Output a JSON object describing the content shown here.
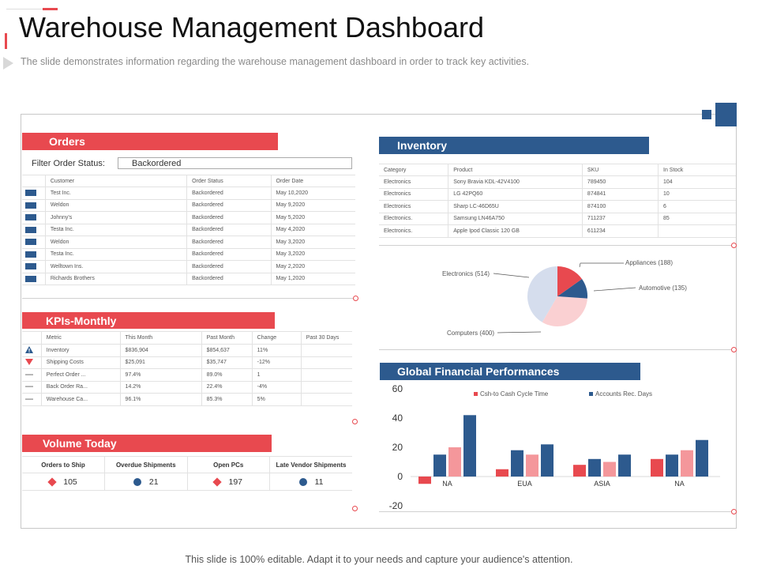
{
  "title": "Warehouse Management Dashboard",
  "subtitle": "The slide demonstrates information  regarding  the warehouse  management  dashboard  in order  to track key activities.",
  "footer": "This slide is 100% editable. Adapt it to your needs and capture your audience's attention.",
  "colors": {
    "red": "#e8494f",
    "blue": "#2d5a8e",
    "pink": "#f4979b",
    "light_blue": "#d5dded",
    "light_pink": "#fad0d2"
  },
  "orders": {
    "header": "Orders",
    "filter_label": "Filter Order Status:",
    "filter_value": "Backordered",
    "columns": [
      "",
      "Customer",
      "Order Status",
      "Order Date"
    ],
    "rows": [
      {
        "customer": "Test Inc.",
        "status": "Backordered",
        "date": "May 10,2020"
      },
      {
        "customer": "Weldon",
        "status": "Backordered",
        "date": "May 9,2020"
      },
      {
        "customer": "Johnny's",
        "status": "Backordered",
        "date": "May 5,2020"
      },
      {
        "customer": "Testa Inc.",
        "status": "Backordered",
        "date": "May 4,2020"
      },
      {
        "customer": "Weldon",
        "status": "Backordered",
        "date": "May 3,2020"
      },
      {
        "customer": "Testa Inc.",
        "status": "Backordered",
        "date": "May 3,2020"
      },
      {
        "customer": "Welltown Ins.",
        "status": "Backordered",
        "date": "May 2,2020"
      },
      {
        "customer": "Richards Brothers",
        "status": "Backordered",
        "date": "May 1,2020"
      }
    ]
  },
  "kpis": {
    "header": "KPIs-Monthly",
    "columns": [
      "",
      "Metric",
      "This Month",
      "Past Month",
      "Change",
      "Past 30 Days"
    ],
    "rows": [
      {
        "icon": "warning-icon",
        "metric": "Inventory",
        "this_month": "$836,904",
        "past_month": "$854,637",
        "change": "11%"
      },
      {
        "icon": "down-arrow-icon",
        "metric": "Shipping Costs",
        "this_month": "$25,091",
        "past_month": "$35,747",
        "change": "-12%"
      },
      {
        "icon": "dash-icon",
        "metric": "Perfect Order ...",
        "this_month": "97.4%",
        "past_month": "89.0%",
        "change": "1"
      },
      {
        "icon": "dash-icon",
        "metric": "Back Order Ra...",
        "this_month": "14.2%",
        "past_month": "22.4%",
        "change": "-4%"
      },
      {
        "icon": "dash-icon",
        "metric": "Warehouse Ca...",
        "this_month": "96.1%",
        "past_month": "85.3%",
        "change": "5%"
      }
    ]
  },
  "volume": {
    "header": "Volume Today",
    "items": [
      {
        "label": "Orders to Ship",
        "value": "105",
        "icon": "diamond-icon"
      },
      {
        "label": "Overdue Shipments",
        "value": "21",
        "icon": "circle-icon"
      },
      {
        "label": "Open PCs",
        "value": "197",
        "icon": "diamond-icon"
      },
      {
        "label": "Late Vendor Shipments",
        "value": "11",
        "icon": "circle-icon"
      }
    ]
  },
  "inventory": {
    "header": "Inventory",
    "columns": [
      "Category",
      "Product",
      "SKU",
      "In Stock"
    ],
    "rows": [
      {
        "category": "Electronics",
        "product": "Sony Bravia KDL-42V4100",
        "sku": "789450",
        "stock": "104"
      },
      {
        "category": "Electronics",
        "product": "LG 42PQ60",
        "sku": "874841",
        "stock": "10"
      },
      {
        "category": "Electronics",
        "product": "Sharp LC-46D65U",
        "sku": "874100",
        "stock": "6"
      },
      {
        "category": "Electronics.",
        "product": "Samsung LN46A750",
        "sku": "711237",
        "stock": "85"
      },
      {
        "category": "Electronics.",
        "product": "Apple Ipod Classic 120 GB",
        "sku": "611234",
        "stock": ""
      }
    ]
  },
  "pie": {
    "labels": [
      "Appliances (188)",
      "Automotive (135)",
      "Computers (400)",
      "Electronics (514)"
    ]
  },
  "financial": {
    "header": "Global Financial Performances"
  },
  "chart_data": {
    "type": "bar",
    "title": "Global Financial Performances",
    "categories": [
      "NA",
      "EUA",
      "ASIA",
      "NA"
    ],
    "ylim": [
      -20,
      60
    ],
    "yticks": [
      "60",
      "40",
      "20",
      "0",
      "-20"
    ],
    "legend": [
      "Csh-to Cash Cycle Time",
      "Accounts Rec. Days"
    ],
    "legend_position": "top",
    "series": [
      {
        "values": [
          -5,
          5,
          8,
          12
        ],
        "color": "#e8494f"
      },
      {
        "values": [
          15,
          18,
          12,
          15
        ],
        "color": "#2d5a8e"
      },
      {
        "values": [
          20,
          15,
          10,
          18
        ],
        "color": "#f4979b"
      },
      {
        "values": [
          42,
          22,
          15,
          25
        ],
        "color": "#2d5a8e"
      }
    ]
  }
}
